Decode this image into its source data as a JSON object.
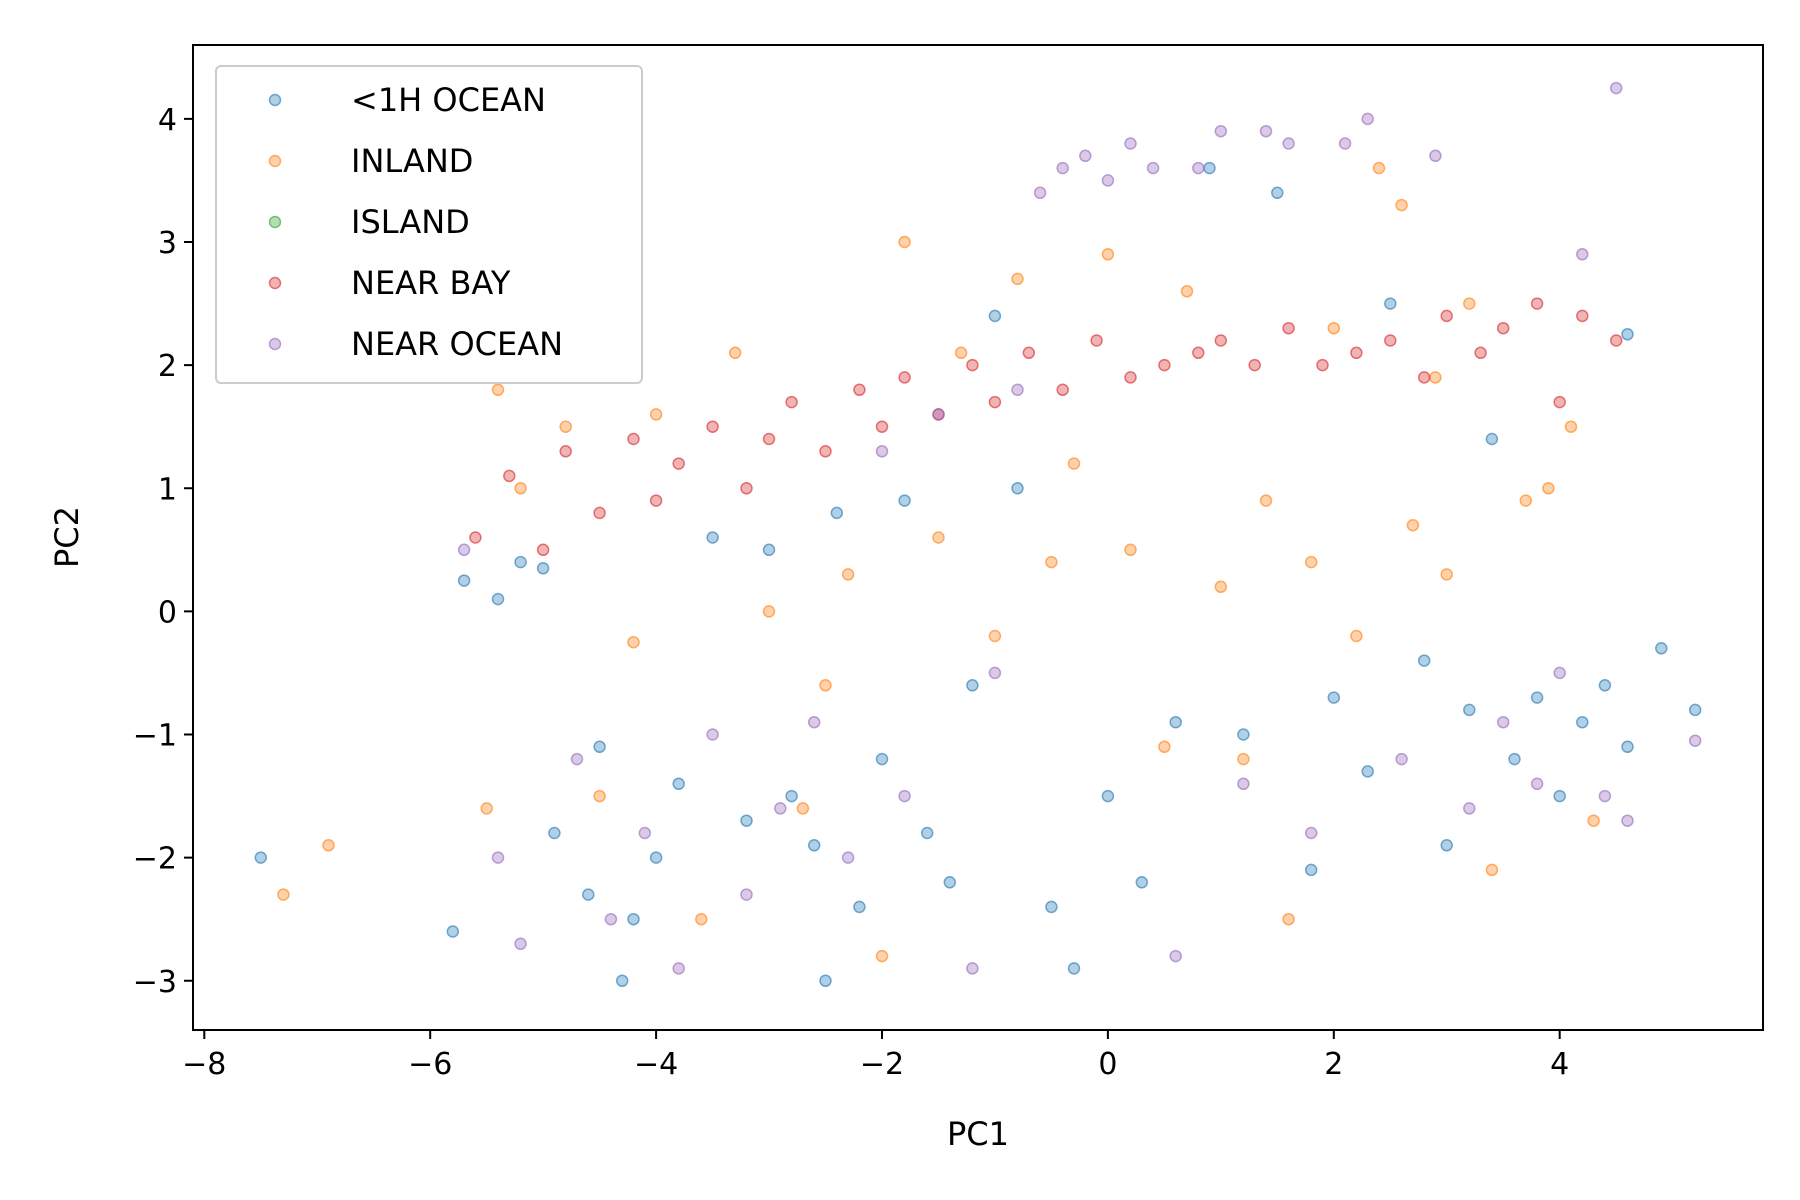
{
  "chart_data": {
    "type": "scatter",
    "title": "",
    "xlabel": "PC1",
    "ylabel": "PC2",
    "xlim": [
      -8.1,
      5.8
    ],
    "ylim": [
      -3.4,
      4.6
    ],
    "xticks": [
      -8,
      -6,
      -4,
      -2,
      0,
      2,
      4
    ],
    "yticks": [
      -3,
      -2,
      -1,
      0,
      1,
      2,
      3,
      4
    ],
    "grid": false,
    "legend_position": "top-left",
    "series": [
      {
        "name": "<1H OCEAN",
        "color": "#1f77b4",
        "points": [
          [
            -7.5,
            -2.0
          ],
          [
            -5.8,
            -2.6
          ],
          [
            -5.7,
            0.25
          ],
          [
            -5.4,
            0.1
          ],
          [
            -5.2,
            0.4
          ],
          [
            -5.0,
            0.35
          ],
          [
            -4.9,
            -1.8
          ],
          [
            -4.6,
            -2.3
          ],
          [
            -4.5,
            -1.1
          ],
          [
            -4.3,
            -3.0
          ],
          [
            -4.2,
            -2.5
          ],
          [
            -4.0,
            -2.0
          ],
          [
            -3.8,
            -1.4
          ],
          [
            -3.5,
            0.6
          ],
          [
            -3.2,
            -1.7
          ],
          [
            -3.0,
            0.5
          ],
          [
            -2.8,
            -1.5
          ],
          [
            -2.6,
            -1.9
          ],
          [
            -2.5,
            -3.0
          ],
          [
            -2.4,
            0.8
          ],
          [
            -2.2,
            -2.4
          ],
          [
            -2.0,
            -1.2
          ],
          [
            -1.8,
            0.9
          ],
          [
            -1.6,
            -1.8
          ],
          [
            -1.4,
            -2.2
          ],
          [
            -1.2,
            -0.6
          ],
          [
            -1.0,
            2.4
          ],
          [
            -0.8,
            1.0
          ],
          [
            -0.5,
            -2.4
          ],
          [
            -0.3,
            -2.9
          ],
          [
            0.0,
            -1.5
          ],
          [
            0.3,
            -2.2
          ],
          [
            0.6,
            -0.9
          ],
          [
            0.9,
            3.6
          ],
          [
            1.2,
            -1.0
          ],
          [
            1.5,
            3.4
          ],
          [
            1.8,
            -2.1
          ],
          [
            2.0,
            -0.7
          ],
          [
            2.3,
            -1.3
          ],
          [
            2.5,
            2.5
          ],
          [
            2.8,
            -0.4
          ],
          [
            3.0,
            -1.9
          ],
          [
            3.2,
            -0.8
          ],
          [
            3.4,
            1.4
          ],
          [
            3.6,
            -1.2
          ],
          [
            3.8,
            -0.7
          ],
          [
            4.0,
            -1.5
          ],
          [
            4.2,
            -0.9
          ],
          [
            4.4,
            -0.6
          ],
          [
            4.6,
            -1.1
          ],
          [
            4.6,
            2.25
          ],
          [
            4.9,
            -0.3
          ],
          [
            5.2,
            -0.8
          ]
        ]
      },
      {
        "name": "INLAND",
        "color": "#ff7f0e",
        "points": [
          [
            -7.3,
            -2.3
          ],
          [
            -6.9,
            -1.9
          ],
          [
            -5.5,
            -1.6
          ],
          [
            -5.4,
            1.8
          ],
          [
            -5.2,
            1.0
          ],
          [
            -4.8,
            1.5
          ],
          [
            -4.5,
            -1.5
          ],
          [
            -4.2,
            -0.25
          ],
          [
            -4.0,
            1.6
          ],
          [
            -3.6,
            -2.5
          ],
          [
            -3.3,
            2.1
          ],
          [
            -3.0,
            0.0
          ],
          [
            -2.7,
            -1.6
          ],
          [
            -2.5,
            -0.6
          ],
          [
            -2.3,
            0.3
          ],
          [
            -2.0,
            -2.8
          ],
          [
            -1.8,
            3.0
          ],
          [
            -1.5,
            0.6
          ],
          [
            -1.3,
            2.1
          ],
          [
            -1.0,
            -0.2
          ],
          [
            -0.8,
            2.7
          ],
          [
            -0.5,
            0.4
          ],
          [
            -0.3,
            1.2
          ],
          [
            0.0,
            2.9
          ],
          [
            0.2,
            0.5
          ],
          [
            0.5,
            -1.1
          ],
          [
            0.7,
            2.6
          ],
          [
            1.0,
            0.2
          ],
          [
            1.2,
            -1.2
          ],
          [
            1.4,
            0.9
          ],
          [
            1.6,
            -2.5
          ],
          [
            1.8,
            0.4
          ],
          [
            2.0,
            2.3
          ],
          [
            2.2,
            -0.2
          ],
          [
            2.4,
            3.6
          ],
          [
            2.6,
            3.3
          ],
          [
            2.7,
            0.7
          ],
          [
            2.9,
            1.9
          ],
          [
            3.0,
            0.3
          ],
          [
            3.2,
            2.5
          ],
          [
            3.4,
            -2.1
          ],
          [
            3.7,
            0.9
          ],
          [
            3.9,
            1.0
          ],
          [
            4.1,
            1.5
          ],
          [
            4.3,
            -1.7
          ]
        ]
      },
      {
        "name": "ISLAND",
        "color": "#2ca02c",
        "points": []
      },
      {
        "name": "NEAR BAY",
        "color": "#d62728",
        "points": [
          [
            -5.6,
            0.6
          ],
          [
            -5.3,
            1.1
          ],
          [
            -5.0,
            0.5
          ],
          [
            -4.8,
            1.3
          ],
          [
            -4.5,
            0.8
          ],
          [
            -4.2,
            1.4
          ],
          [
            -4.0,
            0.9
          ],
          [
            -3.8,
            1.2
          ],
          [
            -3.5,
            1.5
          ],
          [
            -3.2,
            1.0
          ],
          [
            -3.0,
            1.4
          ],
          [
            -2.8,
            1.7
          ],
          [
            -2.5,
            1.3
          ],
          [
            -2.2,
            1.8
          ],
          [
            -2.0,
            1.5
          ],
          [
            -1.8,
            1.9
          ],
          [
            -1.5,
            1.6
          ],
          [
            -1.2,
            2.0
          ],
          [
            -1.0,
            1.7
          ],
          [
            -0.7,
            2.1
          ],
          [
            -0.4,
            1.8
          ],
          [
            -0.1,
            2.2
          ],
          [
            0.2,
            1.9
          ],
          [
            0.5,
            2.0
          ],
          [
            0.8,
            2.1
          ],
          [
            1.0,
            2.2
          ],
          [
            1.3,
            2.0
          ],
          [
            1.6,
            2.3
          ],
          [
            1.9,
            2.0
          ],
          [
            2.2,
            2.1
          ],
          [
            2.5,
            2.2
          ],
          [
            2.8,
            1.9
          ],
          [
            3.0,
            2.4
          ],
          [
            3.3,
            2.1
          ],
          [
            3.5,
            2.3
          ],
          [
            3.8,
            2.5
          ],
          [
            4.0,
            1.7
          ],
          [
            4.2,
            2.4
          ],
          [
            4.5,
            2.2
          ]
        ]
      },
      {
        "name": "NEAR OCEAN",
        "color": "#9467bd",
        "points": [
          [
            -5.7,
            0.5
          ],
          [
            -5.4,
            -2.0
          ],
          [
            -5.2,
            -2.7
          ],
          [
            -4.7,
            -1.2
          ],
          [
            -4.4,
            -2.5
          ],
          [
            -4.1,
            -1.8
          ],
          [
            -3.8,
            -2.9
          ],
          [
            -3.5,
            -1.0
          ],
          [
            -3.2,
            -2.3
          ],
          [
            -2.9,
            -1.6
          ],
          [
            -2.6,
            -0.9
          ],
          [
            -2.3,
            -2.0
          ],
          [
            -2.0,
            1.3
          ],
          [
            -1.8,
            -1.5
          ],
          [
            -1.5,
            1.6
          ],
          [
            -1.2,
            -2.9
          ],
          [
            -1.0,
            -0.5
          ],
          [
            -0.8,
            1.8
          ],
          [
            -0.6,
            3.4
          ],
          [
            -0.4,
            3.6
          ],
          [
            -0.2,
            3.7
          ],
          [
            0.0,
            3.5
          ],
          [
            0.2,
            3.8
          ],
          [
            0.4,
            3.6
          ],
          [
            0.6,
            -2.8
          ],
          [
            0.8,
            3.6
          ],
          [
            1.0,
            3.9
          ],
          [
            1.2,
            -1.4
          ],
          [
            1.4,
            3.9
          ],
          [
            1.6,
            3.8
          ],
          [
            1.8,
            -1.8
          ],
          [
            2.1,
            3.8
          ],
          [
            2.3,
            4.0
          ],
          [
            2.6,
            -1.2
          ],
          [
            2.9,
            3.7
          ],
          [
            3.2,
            -1.6
          ],
          [
            3.5,
            -0.9
          ],
          [
            3.8,
            -1.4
          ],
          [
            4.0,
            -0.5
          ],
          [
            4.2,
            2.9
          ],
          [
            4.4,
            -1.5
          ],
          [
            4.5,
            4.25
          ],
          [
            4.6,
            -1.7
          ],
          [
            5.2,
            -1.05
          ]
        ]
      }
    ]
  }
}
